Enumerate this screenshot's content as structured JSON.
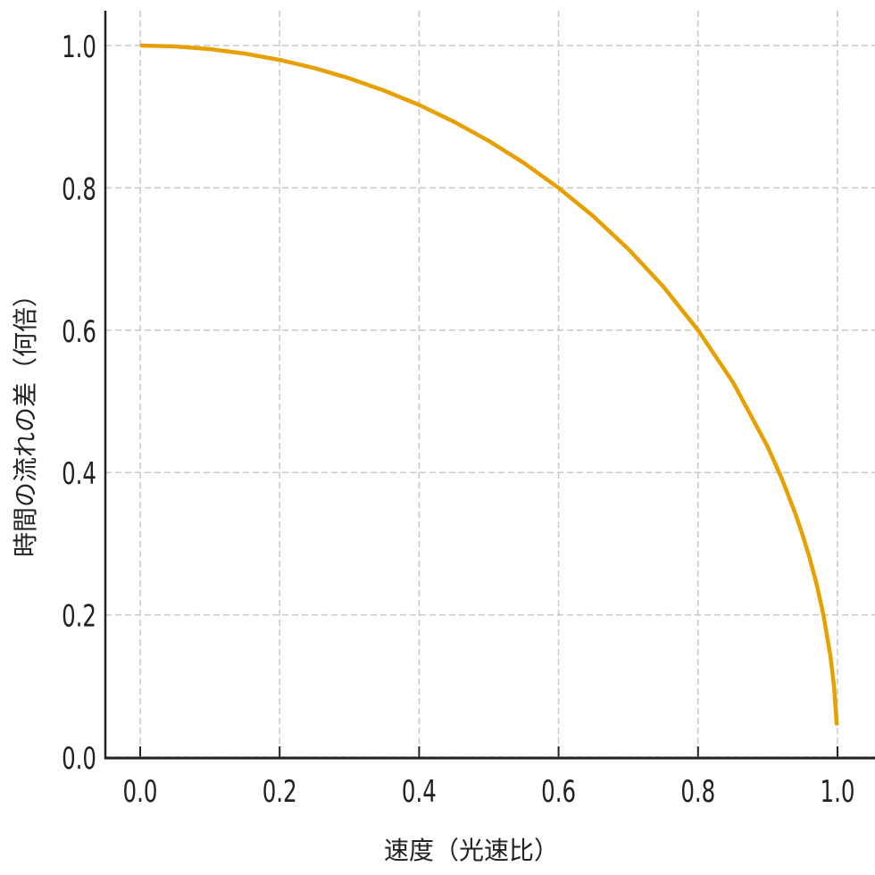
{
  "chart_data": {
    "type": "line",
    "title": "",
    "xlabel": "速度（光速比）",
    "ylabel": "時間の流れの差（何倍）",
    "xlim": [
      -0.05,
      1.05
    ],
    "ylim": [
      0,
      1.05
    ],
    "grid": true,
    "x_ticks": [
      "0.0",
      "0.2",
      "0.4",
      "0.6",
      "0.8",
      "1.0"
    ],
    "y_ticks": [
      "0.0",
      "0.2",
      "0.4",
      "0.6",
      "0.8",
      "1.0"
    ],
    "line_color": "#E8A000",
    "series": [
      {
        "x": [
          0,
          0.05,
          0.1,
          0.15,
          0.2,
          0.25,
          0.3,
          0.35,
          0.4,
          0.45,
          0.5,
          0.55,
          0.6,
          0.65,
          0.7,
          0.75,
          0.8,
          0.85,
          0.9,
          0.92,
          0.94,
          0.95,
          0.96,
          0.97,
          0.98,
          0.99,
          0.995,
          0.999
        ],
        "y": [
          1,
          0.9987,
          0.995,
          0.9887,
          0.9798,
          0.9682,
          0.9539,
          0.9367,
          0.9165,
          0.893,
          0.866,
          0.8352,
          0.8,
          0.7599,
          0.7141,
          0.6614,
          0.6,
          0.5268,
          0.4359,
          0.3919,
          0.3412,
          0.3122,
          0.28,
          0.2431,
          0.199,
          0.1411,
          0.0999,
          0.0447
        ]
      }
    ]
  }
}
